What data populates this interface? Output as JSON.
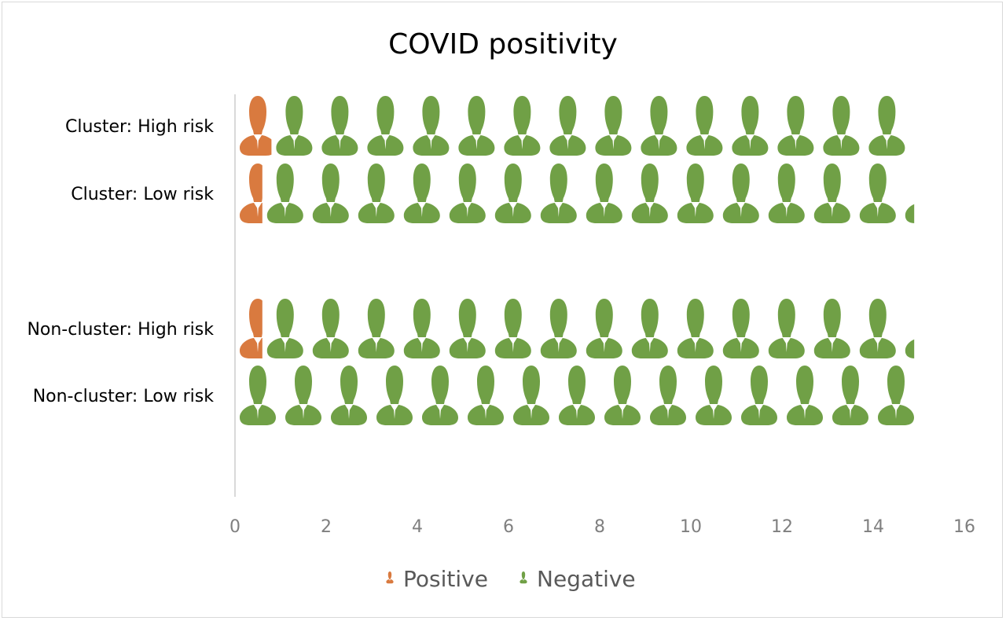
{
  "chart_data": {
    "type": "bar",
    "title": "COVID positivity",
    "xlabel": "",
    "ylabel": "",
    "categories": [
      "Cluster: High risk",
      "Cluster: Low risk",
      "Non-cluster: High risk",
      "Non-cluster: Low risk"
    ],
    "series": [
      {
        "name": "Positive",
        "values": [
          0.8,
          0.6,
          0.6,
          0.0
        ]
      },
      {
        "name": "Negative",
        "values": [
          14.1,
          14.3,
          14.3,
          14.9
        ]
      }
    ],
    "stacked": true,
    "orientation": "horizontal",
    "bar_style": "pictograph-person-icons",
    "xlim": [
      0,
      16
    ],
    "xticks": [
      "0",
      "2",
      "4",
      "6",
      "8",
      "10",
      "12",
      "14",
      "16"
    ],
    "grid": false,
    "legend_position": "bottom",
    "colors": {
      "Positive": "#d97a3f",
      "Negative": "#70a046"
    }
  }
}
